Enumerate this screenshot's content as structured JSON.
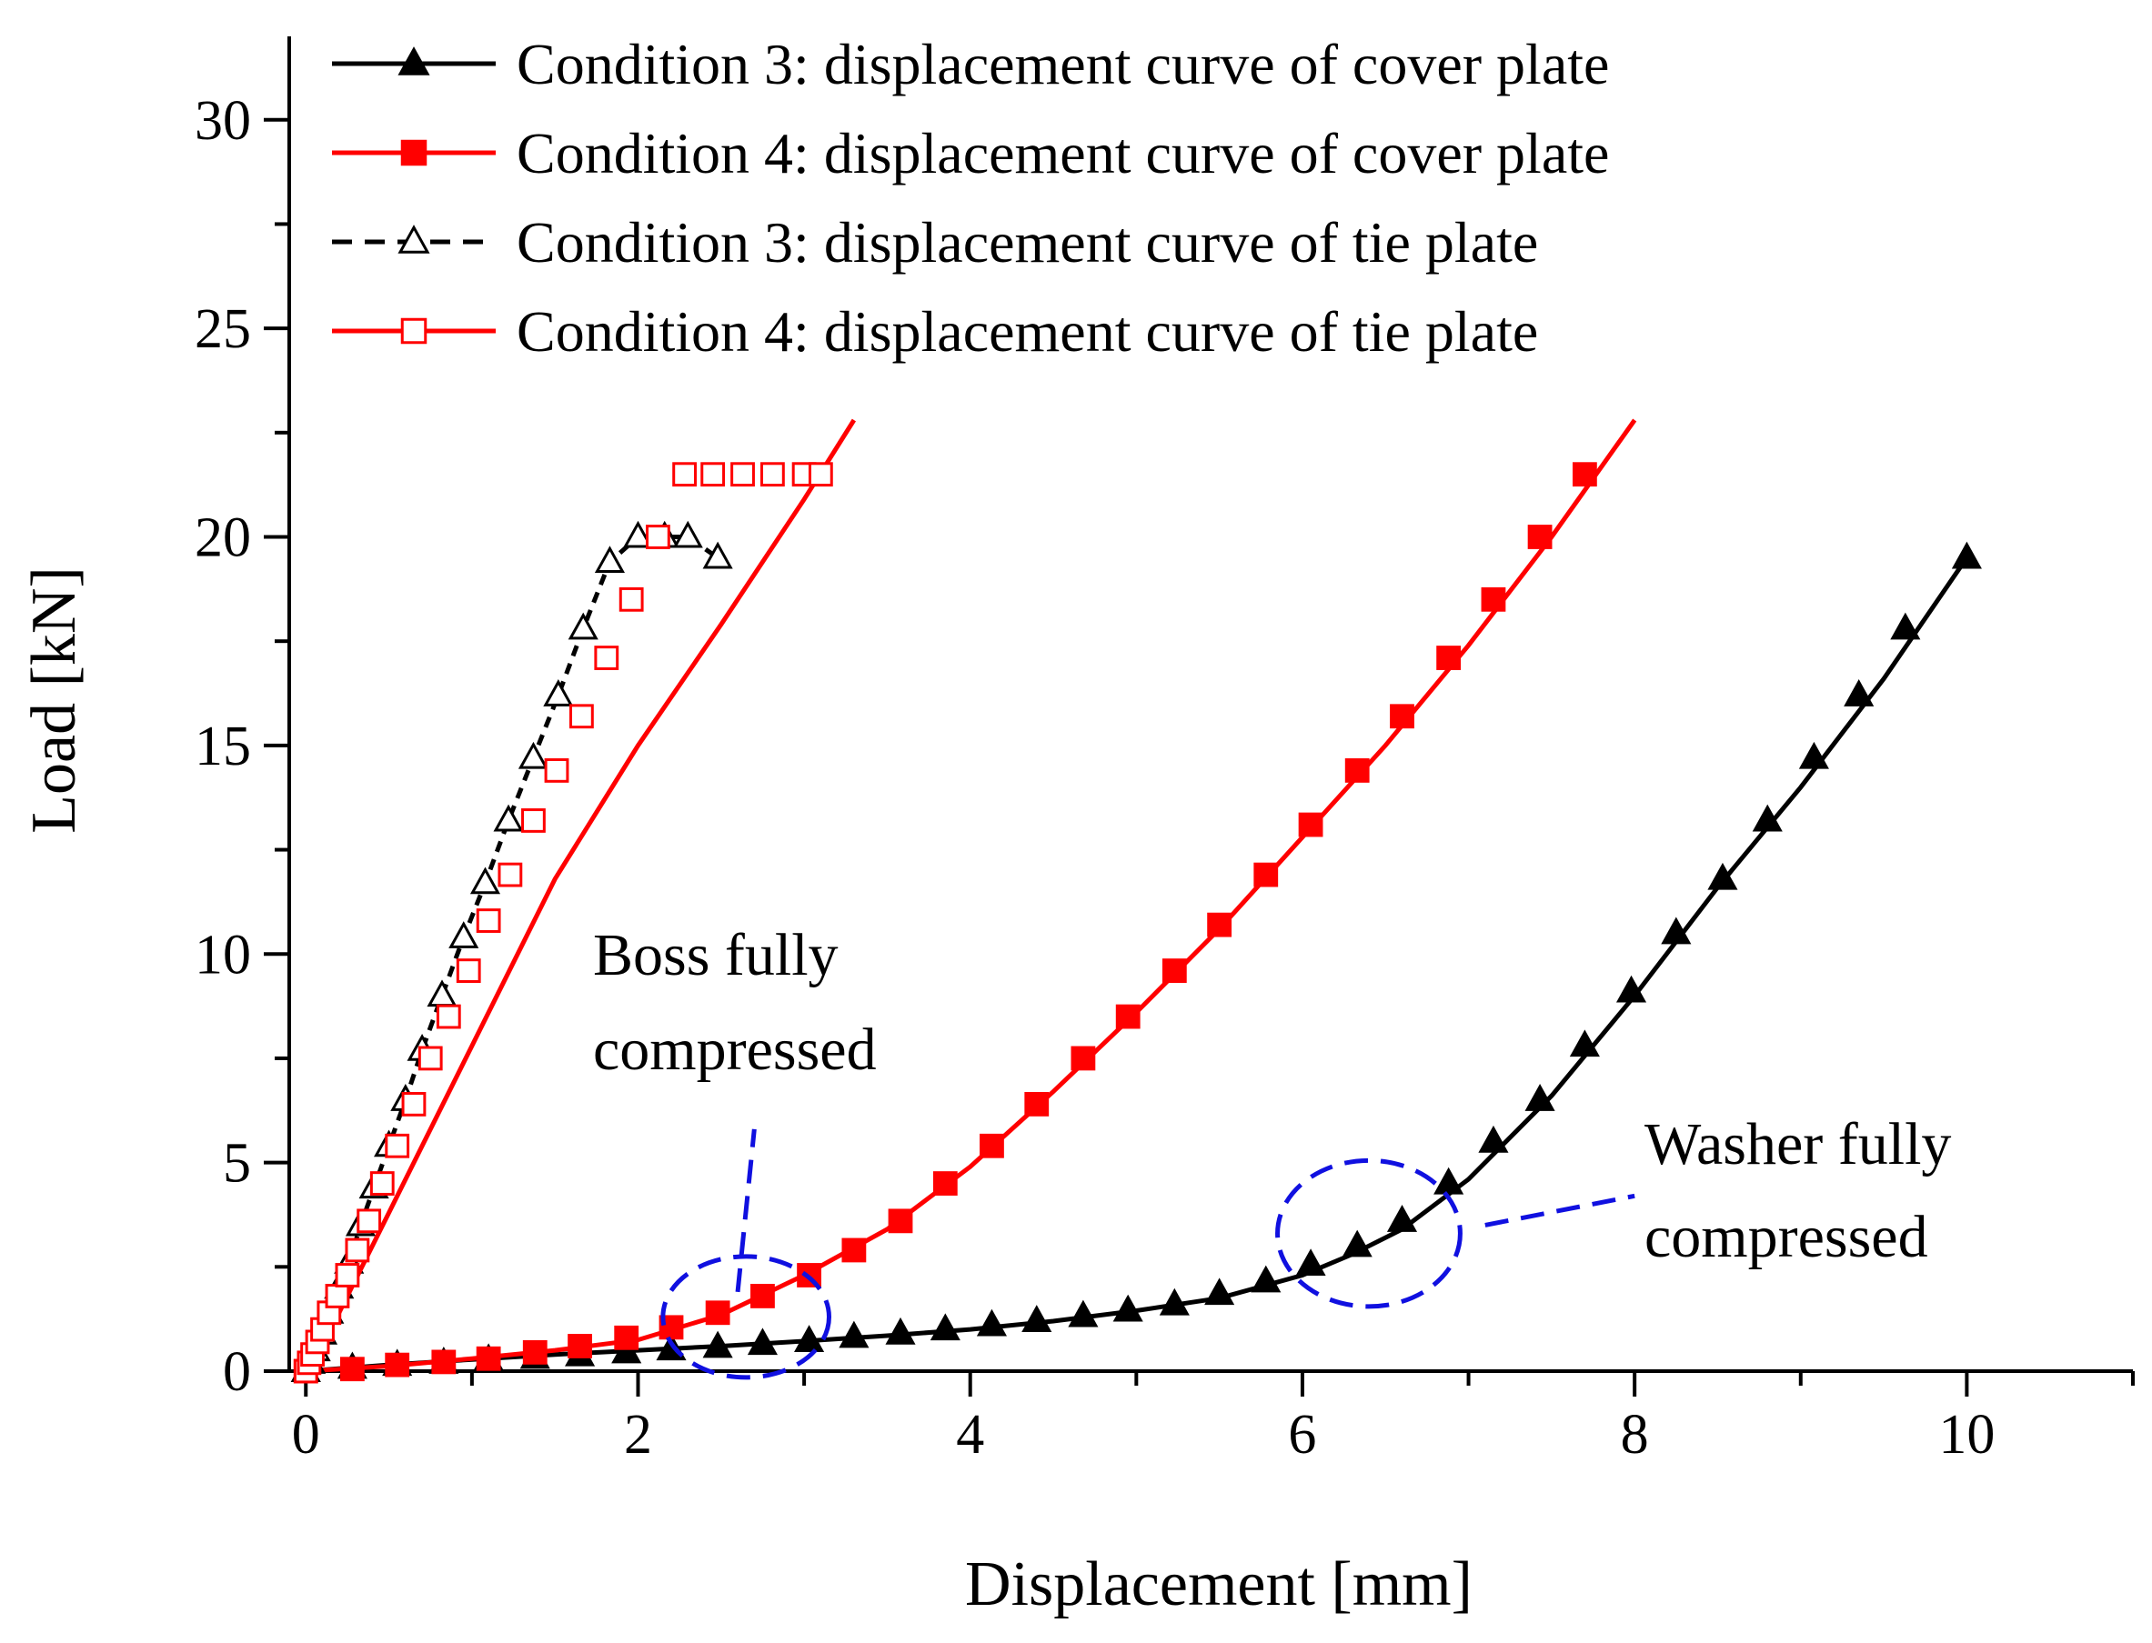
{
  "chart_data": {
    "type": "line",
    "title": "",
    "xlabel": "Displacement [mm]",
    "ylabel": "Load [kN]",
    "xlim": [
      -0.1,
      11
    ],
    "ylim": [
      0,
      32
    ],
    "x_ticks": [
      0,
      2,
      4,
      6,
      8,
      10
    ],
    "y_ticks": [
      0,
      5,
      10,
      15,
      20,
      25,
      30
    ],
    "x_tick_labels": [
      "0",
      "2",
      "4",
      "6",
      "8",
      "10"
    ],
    "y_tick_labels": [
      "0",
      "5",
      "10",
      "15",
      "20",
      "25",
      "30"
    ],
    "grid": false,
    "legend_position": "top-left",
    "series": [
      {
        "name": "Condition 3: displacement curve of cover plate",
        "color": "#000000",
        "line_style": "solid",
        "marker": "triangle-filled",
        "curve_x": [
          0,
          0.5,
          1,
          1.5,
          2,
          2.5,
          3,
          3.5,
          4,
          4.5,
          5,
          5.5,
          6,
          6.3,
          6.6,
          7,
          7.5,
          8,
          8.5,
          9,
          9.5,
          10
        ],
        "curve_y": [
          0,
          0.15,
          0.28,
          0.4,
          0.5,
          0.6,
          0.72,
          0.85,
          1.0,
          1.2,
          1.45,
          1.75,
          2.3,
          2.8,
          3.4,
          4.6,
          6.6,
          9.0,
          11.6,
          14.0,
          16.6,
          19.5
        ],
        "x": [
          0,
          0.28,
          0.55,
          0.83,
          1.1,
          1.38,
          1.65,
          1.93,
          2.2,
          2.48,
          2.75,
          3.03,
          3.3,
          3.58,
          3.85,
          4.13,
          4.4,
          4.68,
          4.95,
          5.23,
          5.5,
          5.78,
          6.05,
          6.33,
          6.6,
          6.88,
          7.15,
          7.43,
          7.7,
          7.98,
          8.25,
          8.53,
          8.8,
          9.08,
          9.35,
          9.63,
          10.0
        ],
        "y": [
          0,
          0.08,
          0.15,
          0.2,
          0.28,
          0.32,
          0.38,
          0.45,
          0.52,
          0.58,
          0.65,
          0.72,
          0.82,
          0.9,
          1.0,
          1.1,
          1.2,
          1.32,
          1.45,
          1.6,
          1.85,
          2.15,
          2.55,
          3.0,
          3.6,
          4.5,
          5.5,
          6.5,
          7.8,
          9.1,
          10.5,
          11.8,
          13.2,
          14.7,
          16.2,
          17.8,
          19.5
        ]
      },
      {
        "name": "Condition 4: displacement curve of cover plate",
        "color": "#ff0000",
        "line_style": "solid",
        "marker": "square-filled",
        "curve_x": [
          0,
          0.5,
          1,
          1.5,
          2,
          2.5,
          3,
          3.5,
          4,
          4.5,
          5,
          5.5,
          6,
          6.5,
          7,
          7.5,
          8
        ],
        "curve_y": [
          0,
          0.12,
          0.3,
          0.5,
          0.75,
          1.35,
          2.3,
          3.4,
          4.9,
          6.7,
          8.6,
          10.6,
          12.8,
          15.0,
          17.4,
          20.0,
          22.8
        ],
        "x": [
          0,
          0.28,
          0.55,
          0.83,
          1.1,
          1.38,
          1.65,
          1.93,
          2.2,
          2.48,
          2.75,
          3.03,
          3.3,
          3.58,
          3.85,
          4.13,
          4.4,
          4.68,
          4.95,
          5.23,
          5.5,
          5.78,
          6.05,
          6.33,
          6.6,
          6.88,
          7.15,
          7.43,
          7.7
        ],
        "y": [
          0,
          0.05,
          0.15,
          0.22,
          0.3,
          0.45,
          0.6,
          0.8,
          1.05,
          1.4,
          1.8,
          2.3,
          2.9,
          3.6,
          4.5,
          5.4,
          6.4,
          7.5,
          8.5,
          9.6,
          10.7,
          11.9,
          13.1,
          14.4,
          15.7,
          17.1,
          18.5,
          20.0,
          21.5
        ]
      },
      {
        "name": "Condition 3: displacement curve of tie plate",
        "color": "#000000",
        "line_style": "dashed",
        "marker": "triangle-open",
        "x": [
          0,
          0.03,
          0.06,
          0.1,
          0.14,
          0.2,
          0.26,
          0.33,
          0.41,
          0.5,
          0.6,
          0.7,
          0.82,
          0.95,
          1.08,
          1.22,
          1.37,
          1.52,
          1.67,
          1.83,
          2.0,
          2.16,
          2.3,
          2.48
        ],
        "y": [
          0,
          0.2,
          0.5,
          0.9,
          1.4,
          2.0,
          2.6,
          3.5,
          4.4,
          5.4,
          6.5,
          7.7,
          9.0,
          10.4,
          11.7,
          13.2,
          14.7,
          16.2,
          17.8,
          19.4,
          20.0,
          20.0,
          20.0,
          19.5
        ]
      },
      {
        "name": "Condition 4: displacement curve of tie plate",
        "color": "#ff0000",
        "line_style": "solid",
        "marker": "square-open",
        "curve_x": [
          0,
          0.2,
          0.5,
          1.0,
          1.5,
          2.0,
          2.5,
          3.0,
          3.3
        ],
        "curve_y": [
          0,
          1.4,
          3.8,
          7.8,
          11.8,
          15.0,
          17.9,
          20.9,
          22.8
        ],
        "x": [
          0,
          0.02,
          0.04,
          0.07,
          0.1,
          0.14,
          0.19,
          0.25,
          0.31,
          0.38,
          0.46,
          0.55,
          0.65,
          0.75,
          0.86,
          0.98,
          1.1,
          1.23,
          1.37,
          1.51,
          1.66,
          1.81,
          1.96,
          2.12,
          2.28,
          2.45,
          2.63,
          2.81,
          3.0,
          3.1
        ],
        "y": [
          0,
          0.2,
          0.4,
          0.7,
          1.0,
          1.4,
          1.8,
          2.3,
          2.9,
          3.6,
          4.5,
          5.4,
          6.4,
          7.5,
          8.5,
          9.6,
          10.8,
          11.9,
          13.2,
          14.4,
          15.7,
          17.1,
          18.5,
          20.0,
          21.5,
          21.5,
          21.5,
          21.5,
          21.5,
          21.5
        ]
      }
    ],
    "annotations": [
      {
        "label": "annotation-boss",
        "lines": [
          "Boss fully",
          "compressed"
        ],
        "ellipse_center": [
          2.65,
          1.3
        ],
        "ellipse_radii": [
          0.5,
          1.45
        ],
        "leader_from": [
          2.6,
          1.9
        ],
        "leader_to": [
          2.7,
          5.8
        ]
      },
      {
        "label": "annotation-washer",
        "lines": [
          "Washer fully",
          "compressed"
        ],
        "ellipse_center": [
          6.4,
          3.3
        ],
        "ellipse_radii": [
          0.55,
          1.75
        ],
        "leader_from": [
          7.1,
          3.5
        ],
        "leader_to": [
          8.0,
          4.2
        ]
      }
    ]
  }
}
